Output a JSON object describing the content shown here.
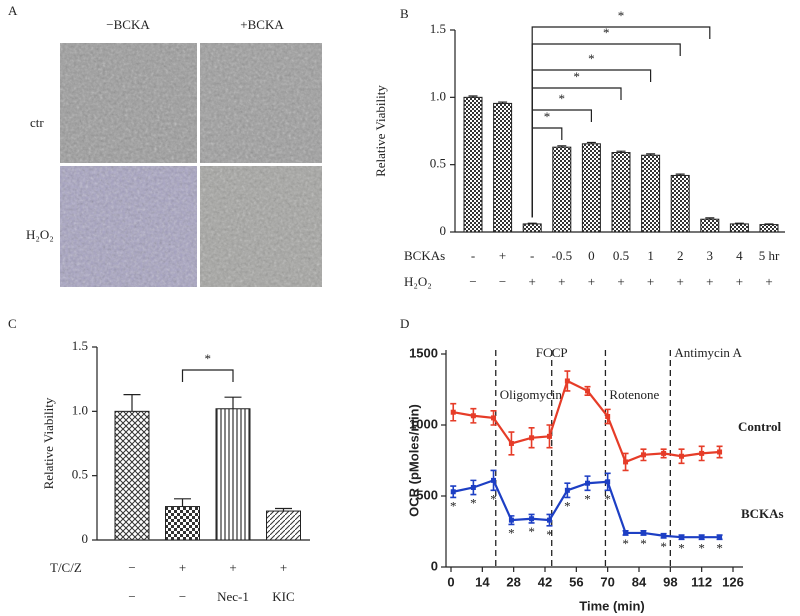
{
  "panel_a": {
    "label": "A",
    "columns": [
      "−BCKA",
      "+BCKA"
    ],
    "rows": [
      "ctr",
      "H₂O₂"
    ]
  },
  "chart_data": [
    {
      "type": "bar",
      "panel": "B",
      "ylabel": "Relative Viability",
      "category_row_labels": [
        "BCKAs",
        "H₂O₂"
      ],
      "categories": [
        "-",
        "+",
        "-",
        "-0.5",
        "0",
        "0.5",
        "1",
        "2",
        "3",
        "4",
        "5 hr"
      ],
      "categories2": [
        "−",
        "−",
        "+",
        "+",
        "+",
        "+",
        "+",
        "+",
        "+",
        "+",
        "+"
      ],
      "values": [
        1.0,
        0.955,
        0.06,
        0.63,
        0.655,
        0.59,
        0.57,
        0.42,
        0.095,
        0.06,
        0.055
      ],
      "errors": [
        0.01,
        0.01,
        0.005,
        0.01,
        0.01,
        0.01,
        0.01,
        0.01,
        0.01,
        0.005,
        0.005
      ],
      "ylim": [
        0,
        1.5
      ],
      "yticks": [
        0,
        0.5,
        {
          "value": 1,
          "label": "1.0"
        },
        1.5
      ],
      "comparisons": [
        {
          "groups": [
            2,
            3
          ],
          "label": "*"
        },
        {
          "groups": [
            2,
            4
          ],
          "label": "*"
        },
        {
          "groups": [
            2,
            5
          ],
          "label": "*"
        },
        {
          "groups": [
            2,
            6
          ],
          "label": "*"
        },
        {
          "groups": [
            2,
            7
          ],
          "label": "*"
        },
        {
          "groups": [
            2,
            8
          ],
          "label": "*"
        }
      ]
    },
    {
      "type": "bar",
      "panel": "C",
      "ylabel": "Relative Viability",
      "category_row_labels": [
        "T/C/Z"
      ],
      "categories": [
        "−",
        "+",
        "+",
        "+"
      ],
      "categories2": [
        "−",
        "−",
        "Nec-1",
        "KIC"
      ],
      "values": [
        1.0,
        0.26,
        1.02,
        0.225
      ],
      "errors": [
        0.13,
        0.06,
        0.09,
        0.02
      ],
      "ylim": [
        0,
        1.5
      ],
      "yticks": [
        0,
        0.5,
        {
          "value": 1,
          "label": "1.0"
        },
        1.5
      ],
      "comparisons": [
        {
          "groups": [
            1,
            2
          ],
          "label": "*"
        }
      ]
    },
    {
      "type": "line",
      "panel": "D",
      "xlabel": "Time (min)",
      "ylabel": "OCR (pMoles/min)",
      "xlim": [
        0,
        126
      ],
      "xticks": [
        0,
        14,
        28,
        42,
        56,
        70,
        84,
        98,
        112,
        126
      ],
      "ylim": [
        0,
        1500
      ],
      "yticks": [
        0,
        500,
        1000,
        1500
      ],
      "injections": [
        {
          "x": 20,
          "label": "Oligomycin"
        },
        {
          "x": 45,
          "label": "FCCP"
        },
        {
          "x": 69,
          "label": "Rotenone"
        },
        {
          "x": 98,
          "label": "Antimycin A"
        }
      ],
      "series": [
        {
          "name": "Control",
          "color": "#e63c28",
          "x": [
            1,
            10,
            19,
            27,
            36,
            44,
            52,
            61,
            70,
            78,
            86,
            95,
            103,
            112,
            120
          ],
          "values": [
            1090,
            1065,
            1050,
            870,
            910,
            920,
            1310,
            1240,
            1060,
            740,
            790,
            800,
            780,
            800,
            810
          ],
          "errors": [
            60,
            50,
            50,
            80,
            70,
            80,
            70,
            30,
            50,
            60,
            40,
            30,
            50,
            50,
            40
          ]
        },
        {
          "name": "BCKAs",
          "color": "#1d3fc4",
          "x": [
            1,
            10,
            19,
            27,
            36,
            44,
            52,
            61,
            70,
            78,
            86,
            95,
            103,
            112,
            120
          ],
          "values": [
            530,
            560,
            610,
            330,
            340,
            330,
            540,
            590,
            600,
            240,
            240,
            220,
            210,
            210,
            210
          ],
          "errors": [
            40,
            50,
            70,
            30,
            30,
            40,
            50,
            50,
            60,
            15,
            15,
            15,
            15,
            15,
            15
          ],
          "point_labels": [
            "*",
            "*",
            "*",
            "*",
            "*",
            "*",
            "*",
            "*",
            "*",
            "*",
            "*",
            "*",
            "*",
            "*",
            "*"
          ]
        }
      ]
    }
  ]
}
